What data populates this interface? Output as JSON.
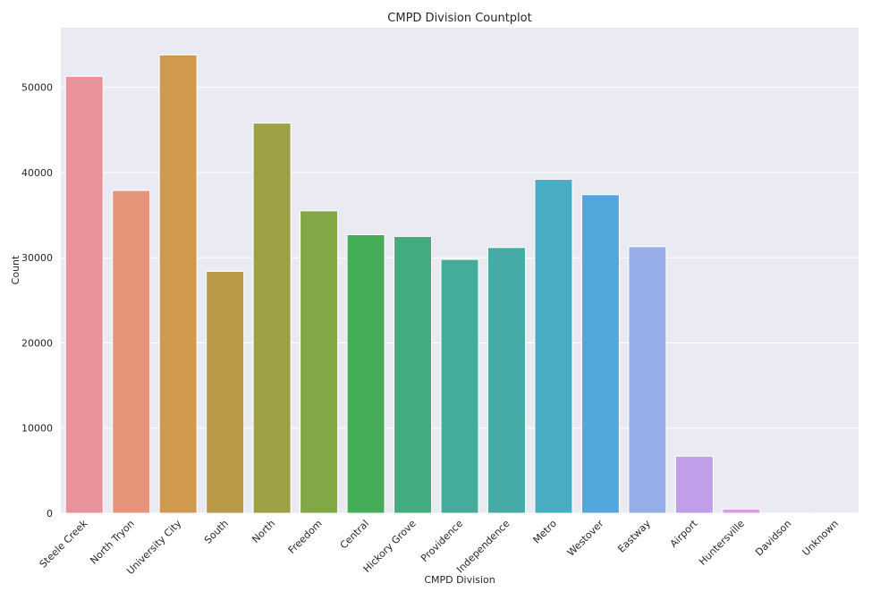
{
  "chart_data": {
    "type": "bar",
    "title": "CMPD Division Countplot",
    "xlabel": "CMPD Division",
    "ylabel": "Count",
    "ylim": [
      0,
      57000
    ],
    "yticks": [
      0,
      10000,
      20000,
      30000,
      40000,
      50000
    ],
    "grid": true,
    "categories": [
      "Steele Creek",
      "North Tryon",
      "University City",
      "South",
      "North",
      "Freedom",
      "Central",
      "Hickory Grove",
      "Providence",
      "Independence",
      "Metro",
      "Westover",
      "Eastway",
      "Airport",
      "Huntersville",
      "Davidson",
      "Unknown"
    ],
    "values": [
      51300,
      37900,
      53800,
      28400,
      45800,
      35500,
      32700,
      32500,
      29800,
      31200,
      39200,
      37400,
      31300,
      6700,
      500,
      30,
      20
    ],
    "colors": [
      "#e8929c",
      "#e6957a",
      "#cf9a4d",
      "#b99945",
      "#9da045",
      "#82a846",
      "#45ad58",
      "#45ac82",
      "#45ab9b",
      "#46aaa7",
      "#4aacc2",
      "#52a8dc",
      "#98aee8",
      "#c09fe8",
      "#df9ae6",
      "#e690c8",
      "#e892ad"
    ]
  }
}
